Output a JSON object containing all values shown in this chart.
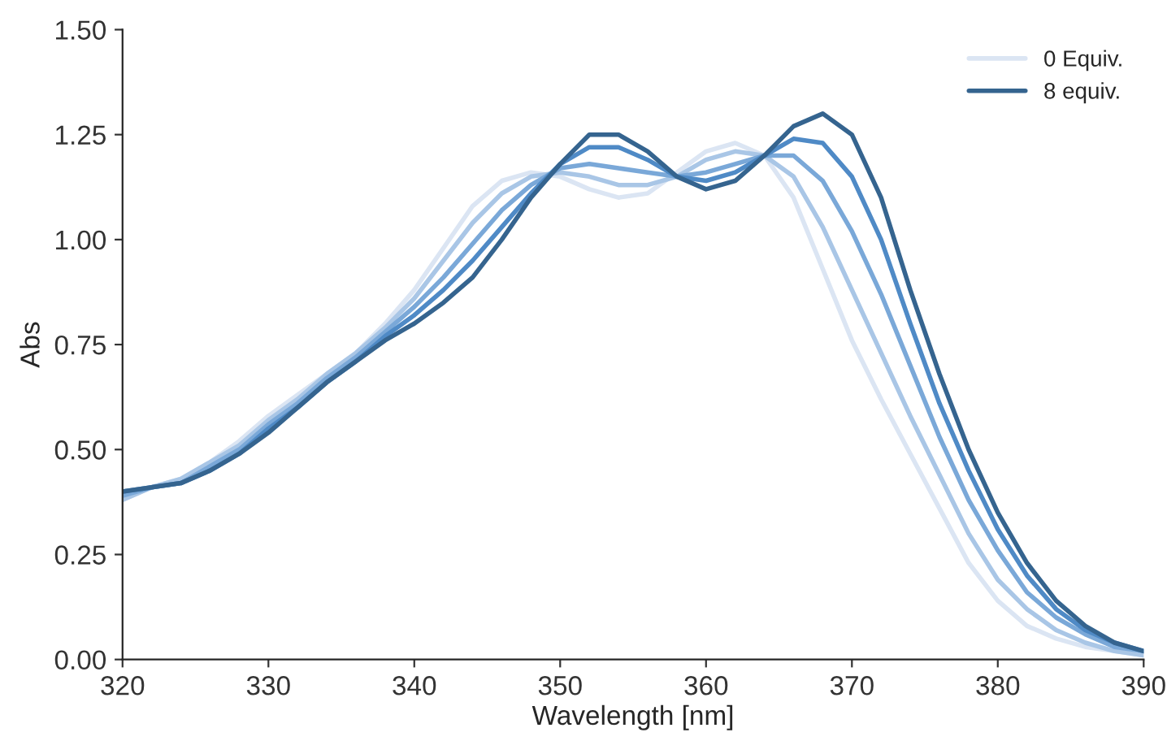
{
  "chart_data": {
    "type": "line",
    "xlabel": "Wavelength [nm]",
    "ylabel": "Abs",
    "x": [
      320,
      322,
      324,
      326,
      328,
      330,
      332,
      334,
      336,
      338,
      340,
      342,
      344,
      346,
      348,
      350,
      352,
      354,
      356,
      358,
      360,
      362,
      364,
      366,
      368,
      370,
      372,
      374,
      376,
      378,
      380,
      382,
      384,
      386,
      388,
      390
    ],
    "series": [
      {
        "name": "0 Equiv.",
        "color": "#dbe5f3",
        "values": [
          0.38,
          0.41,
          0.43,
          0.47,
          0.52,
          0.58,
          0.63,
          0.68,
          0.73,
          0.8,
          0.88,
          0.98,
          1.08,
          1.14,
          1.16,
          1.15,
          1.12,
          1.1,
          1.11,
          1.16,
          1.21,
          1.23,
          1.2,
          1.1,
          0.93,
          0.76,
          0.62,
          0.49,
          0.36,
          0.23,
          0.14,
          0.08,
          0.05,
          0.03,
          0.02,
          0.01
        ]
      },
      {
        "color": "#a9c6e6",
        "values": [
          0.38,
          0.41,
          0.43,
          0.47,
          0.51,
          0.57,
          0.62,
          0.68,
          0.73,
          0.79,
          0.86,
          0.95,
          1.04,
          1.11,
          1.15,
          1.16,
          1.15,
          1.13,
          1.13,
          1.15,
          1.19,
          1.21,
          1.2,
          1.15,
          1.03,
          0.88,
          0.73,
          0.58,
          0.44,
          0.3,
          0.19,
          0.12,
          0.07,
          0.04,
          0.02,
          0.01
        ]
      },
      {
        "color": "#7aa8d8",
        "values": [
          0.39,
          0.41,
          0.42,
          0.46,
          0.5,
          0.56,
          0.61,
          0.67,
          0.72,
          0.78,
          0.84,
          0.91,
          0.99,
          1.07,
          1.13,
          1.17,
          1.18,
          1.17,
          1.16,
          1.15,
          1.16,
          1.18,
          1.2,
          1.2,
          1.14,
          1.02,
          0.87,
          0.7,
          0.53,
          0.38,
          0.26,
          0.16,
          0.1,
          0.06,
          0.03,
          0.02
        ]
      },
      {
        "color": "#4f8ac6",
        "values": [
          0.4,
          0.41,
          0.42,
          0.45,
          0.49,
          0.55,
          0.6,
          0.66,
          0.71,
          0.77,
          0.82,
          0.88,
          0.95,
          1.03,
          1.11,
          1.18,
          1.22,
          1.22,
          1.19,
          1.15,
          1.14,
          1.16,
          1.2,
          1.24,
          1.23,
          1.15,
          1.0,
          0.8,
          0.61,
          0.45,
          0.31,
          0.2,
          0.12,
          0.07,
          0.04,
          0.02
        ]
      },
      {
        "name": "8 equiv.",
        "color": "#35648f",
        "values": [
          0.4,
          0.41,
          0.42,
          0.45,
          0.49,
          0.54,
          0.6,
          0.66,
          0.71,
          0.76,
          0.8,
          0.85,
          0.91,
          1.0,
          1.1,
          1.18,
          1.25,
          1.25,
          1.21,
          1.15,
          1.12,
          1.14,
          1.2,
          1.27,
          1.3,
          1.25,
          1.1,
          0.88,
          0.68,
          0.5,
          0.35,
          0.23,
          0.14,
          0.08,
          0.04,
          0.02
        ]
      }
    ],
    "xlim": [
      320,
      390
    ],
    "xticks": [
      320,
      330,
      340,
      350,
      360,
      370,
      380,
      390
    ],
    "ylim": [
      0,
      1.5
    ],
    "yticks": [
      {
        "value": 0,
        "label": "0.00"
      },
      {
        "value": 0.25,
        "label": "0.25"
      },
      {
        "value": 0.5,
        "label": "0.50"
      },
      {
        "value": 0.75,
        "label": "0.75"
      },
      {
        "value": 1.0,
        "label": "1.00"
      },
      {
        "value": 1.25,
        "label": "1.25"
      },
      {
        "value": 1.5,
        "label": "1.50"
      }
    ],
    "grid": false,
    "legend": "top right",
    "line_style": "solid",
    "marker": "none"
  }
}
